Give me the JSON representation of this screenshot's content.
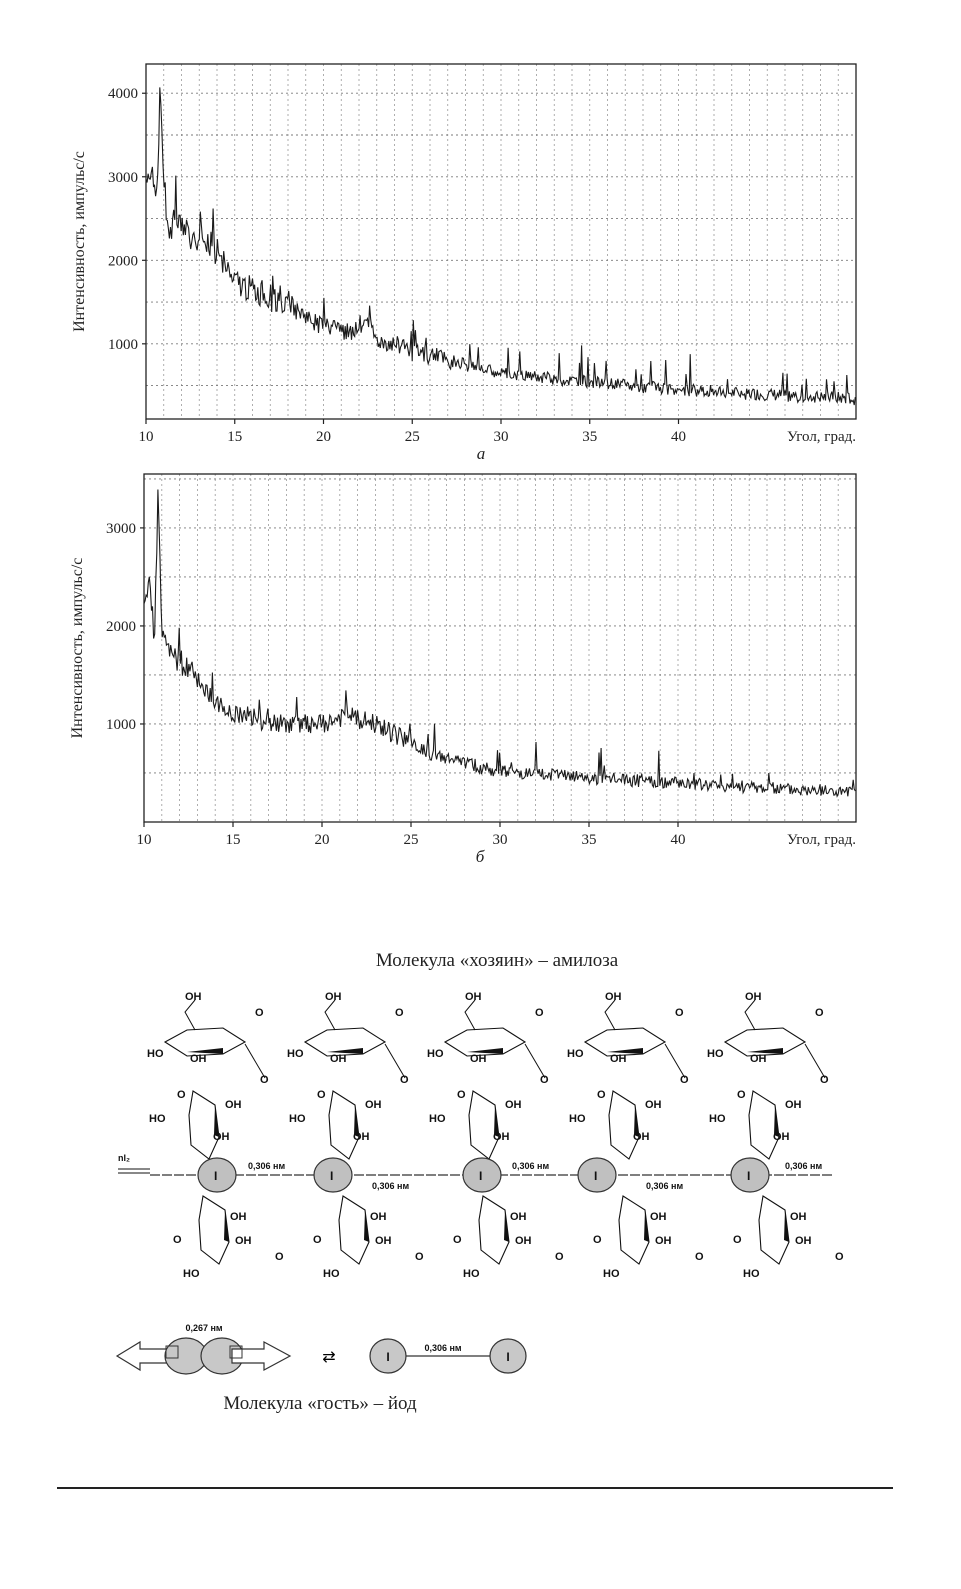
{
  "chart_data": [
    {
      "type": "line",
      "panel_label": "а",
      "title": "",
      "xlabel": "Угол, град.",
      "ylabel": "Интенсивность,  импульс/с",
      "xlim": [
        10,
        50
      ],
      "ylim": [
        100,
        4350
      ],
      "xticks": [
        10,
        15,
        20,
        25,
        30,
        35,
        40
      ],
      "xtick_labels": [
        "10",
        "15",
        "20",
        "25",
        "30",
        "35",
        "40"
      ],
      "yticks": [
        1000,
        2000,
        3000,
        4000
      ],
      "ytick_labels": [
        "1000",
        "2000",
        "3000",
        "4000"
      ],
      "grid": true,
      "series": [
        {
          "name": "а",
          "x": [
            10.0,
            10.3,
            10.6,
            10.8,
            11.0,
            11.3,
            11.6,
            12.0,
            12.5,
            13.0,
            13.5,
            14.0,
            14.5,
            15.0,
            15.5,
            16.0,
            16.5,
            17.0,
            17.5,
            18.0,
            18.5,
            19.0,
            19.5,
            20.0,
            21.0,
            22.0,
            22.5,
            23.0,
            24.0,
            25.0,
            26.0,
            27.0,
            28.0,
            29.0,
            30.0,
            31.0,
            32.0,
            33.0,
            34.0,
            35.0,
            36.0,
            37.0,
            38.0,
            39.0,
            40.0,
            41.0,
            42.0,
            43.0,
            44.0,
            45.0,
            46.0,
            47.0,
            48.0,
            49.0,
            50.0
          ],
          "values": [
            3000,
            3100,
            2800,
            4050,
            3000,
            2200,
            2500,
            2450,
            2300,
            2200,
            2150,
            2100,
            1900,
            1750,
            1700,
            1650,
            1600,
            1550,
            1500,
            1450,
            1400,
            1350,
            1250,
            1200,
            1150,
            1100,
            1250,
            1050,
            1000,
            900,
            870,
            820,
            750,
            700,
            660,
            630,
            600,
            580,
            560,
            540,
            520,
            500,
            480,
            470,
            460,
            440,
            430,
            410,
            400,
            390,
            380,
            370,
            360,
            350,
            340
          ],
          "noise": 150
        }
      ]
    },
    {
      "type": "line",
      "panel_label": "б",
      "title": "",
      "xlabel": "Угол, град.",
      "ylabel": "Интенсивность,  импульс/с",
      "xlim": [
        10,
        50
      ],
      "ylim": [
        0,
        3550
      ],
      "xticks": [
        10,
        15,
        20,
        25,
        30,
        35,
        40
      ],
      "xtick_labels": [
        "10",
        "15",
        "20",
        "25",
        "30",
        "35",
        "40"
      ],
      "yticks": [
        1000,
        2000,
        3000
      ],
      "ytick_labels": [
        "1000",
        "2000",
        "3000"
      ],
      "grid": true,
      "series": [
        {
          "name": "б",
          "x": [
            10.0,
            10.3,
            10.6,
            10.8,
            11.0,
            11.3,
            11.6,
            12.0,
            12.5,
            13.0,
            13.5,
            14.0,
            14.5,
            15.0,
            16.0,
            17.0,
            18.0,
            19.0,
            20.0,
            21.0,
            21.5,
            22.0,
            23.0,
            24.0,
            25.0,
            26.0,
            27.0,
            28.0,
            29.0,
            30.0,
            31.0,
            32.0,
            33.0,
            34.0,
            35.0,
            36.0,
            37.0,
            38.0,
            39.0,
            40.0,
            41.0,
            42.0,
            43.0,
            44.0,
            45.0,
            46.0,
            47.0,
            48.0,
            49.0,
            50.0
          ],
          "values": [
            2200,
            2400,
            1900,
            3300,
            1900,
            1800,
            1700,
            1650,
            1550,
            1450,
            1350,
            1250,
            1150,
            1100,
            1050,
            1000,
            1000,
            1000,
            1000,
            1050,
            1100,
            1050,
            1000,
            900,
            800,
            700,
            650,
            600,
            550,
            520,
            500,
            490,
            480,
            460,
            450,
            440,
            430,
            420,
            410,
            400,
            390,
            380,
            370,
            360,
            350,
            340,
            330,
            320,
            310,
            300
          ],
          "noise": 130
        }
      ]
    }
  ],
  "figure": {
    "host_caption": "Молекула «хозяин» – амилоза",
    "guest_caption": "Молекула «гость» – йод",
    "iodine_label": "I",
    "spacing_label": "0,306 нм",
    "bond_label": "0,267 нм",
    "hydroxyl_label": "OH",
    "hydroxyl_left_label": "HO",
    "oxygen_label": "O",
    "entry_label": "nI₂",
    "equilibrium_symbol": "⇄"
  }
}
